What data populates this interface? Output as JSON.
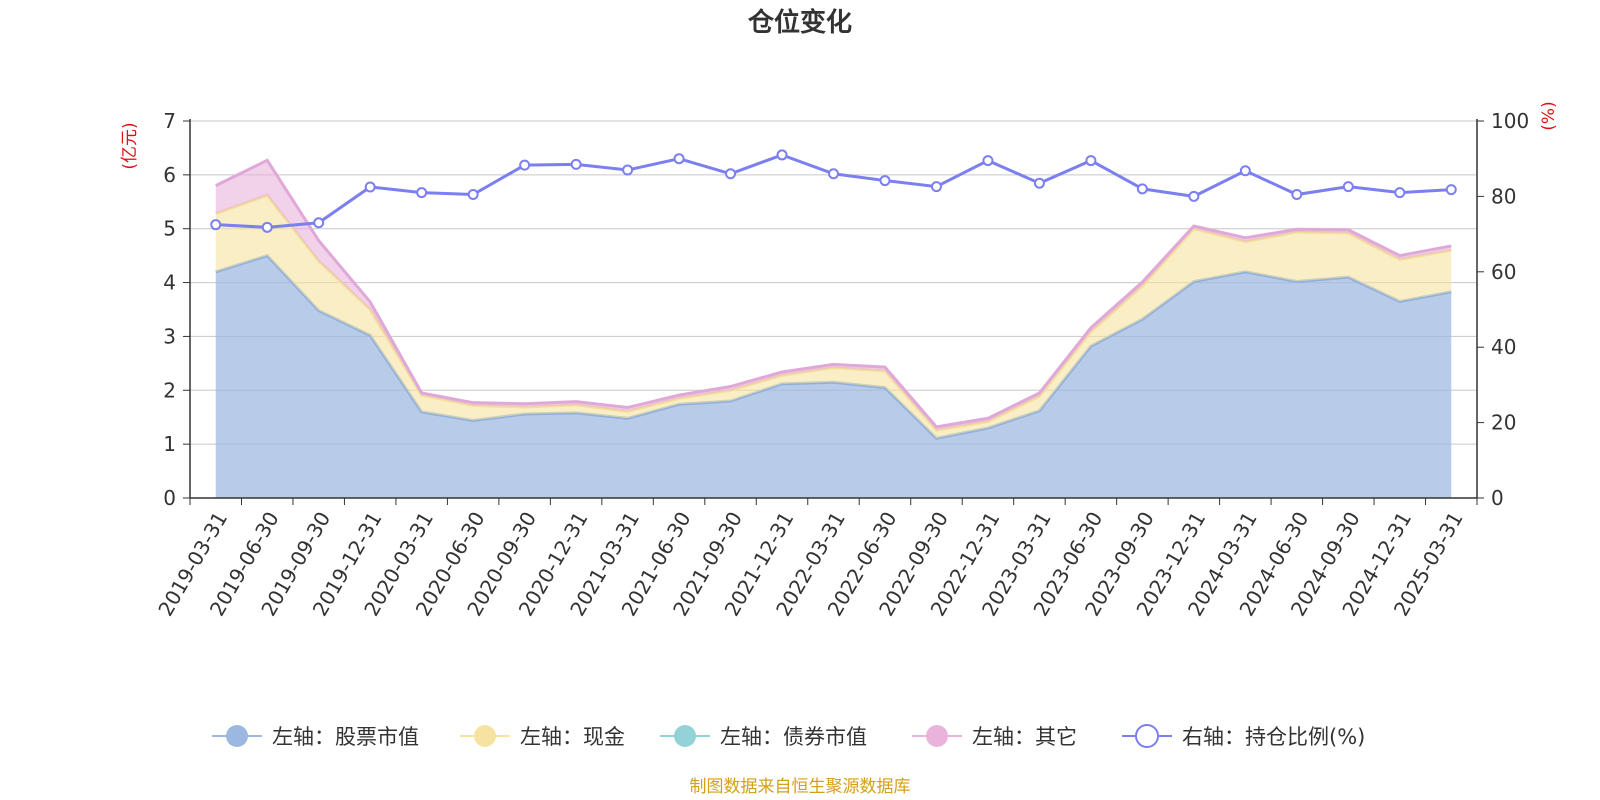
{
  "chart_data": {
    "type": "area",
    "title": "仓位变化",
    "source_note": "制图数据来自恒生聚源数据库",
    "left_axis": {
      "unit": "(亿元)",
      "min": 0,
      "max": 7,
      "ticks": [
        "0",
        "1",
        "2",
        "3",
        "4",
        "5",
        "6",
        "7"
      ]
    },
    "right_axis": {
      "unit": "(%)",
      "min": 0,
      "max": 100,
      "ticks": [
        "0",
        "20",
        "40",
        "60",
        "80",
        "100"
      ]
    },
    "categories": [
      "2019-03-31",
      "2019-06-30",
      "2019-09-30",
      "2019-12-31",
      "2020-03-31",
      "2020-06-30",
      "2020-09-30",
      "2020-12-31",
      "2021-03-31",
      "2021-06-30",
      "2021-09-30",
      "2021-12-31",
      "2022-03-31",
      "2022-06-30",
      "2022-09-30",
      "2022-12-31",
      "2023-03-31",
      "2023-06-30",
      "2023-09-30",
      "2023-12-31",
      "2024-03-31",
      "2024-06-30",
      "2024-09-30",
      "2024-12-31",
      "2025-03-31"
    ],
    "series": [
      {
        "name": "左轴：股票市值",
        "axis": "left",
        "kind": "stacked-area",
        "color": "#9db8e0",
        "values": [
          4.2,
          4.5,
          3.48,
          3.02,
          1.6,
          1.44,
          1.56,
          1.58,
          1.48,
          1.74,
          1.8,
          2.12,
          2.15,
          2.05,
          1.11,
          1.3,
          1.62,
          2.82,
          3.32,
          4.02,
          4.2,
          4.02,
          4.1,
          3.65,
          3.83
        ]
      },
      {
        "name": "左轴：现金",
        "axis": "left",
        "kind": "stacked-area",
        "color": "#f7e3a1",
        "values": [
          1.08,
          1.12,
          0.92,
          0.48,
          0.31,
          0.28,
          0.13,
          0.15,
          0.13,
          0.11,
          0.2,
          0.16,
          0.27,
          0.31,
          0.15,
          0.12,
          0.27,
          0.27,
          0.62,
          0.98,
          0.56,
          0.92,
          0.82,
          0.78,
          0.77
        ]
      },
      {
        "name": "左轴：债券市值",
        "axis": "left",
        "kind": "stacked-area",
        "color": "#93d2d6",
        "values": [
          0,
          0,
          0,
          0,
          0,
          0,
          0,
          0,
          0,
          0,
          0,
          0,
          0,
          0,
          0,
          0,
          0,
          0,
          0,
          0,
          0,
          0,
          0,
          0,
          0
        ]
      },
      {
        "name": "左轴：其它",
        "axis": "left",
        "kind": "stacked-area",
        "color": "#e9b3dc",
        "values": [
          0.52,
          0.65,
          0.38,
          0.14,
          0.04,
          0.05,
          0.06,
          0.06,
          0.07,
          0.06,
          0.07,
          0.06,
          0.06,
          0.07,
          0.06,
          0.06,
          0.06,
          0.07,
          0.07,
          0.05,
          0.07,
          0.05,
          0.06,
          0.07,
          0.08
        ]
      },
      {
        "name": "右轴：持仓比例(%)",
        "axis": "right",
        "kind": "line",
        "color": "#7b7ff0",
        "values": [
          72.5,
          71.8,
          73,
          82.5,
          81,
          80.5,
          88.3,
          88.5,
          87,
          90,
          86,
          91,
          86,
          84.2,
          82.6,
          89.5,
          83.5,
          89.5,
          82,
          80,
          86.8,
          80.5,
          82.6,
          81,
          81.8
        ]
      }
    ]
  }
}
